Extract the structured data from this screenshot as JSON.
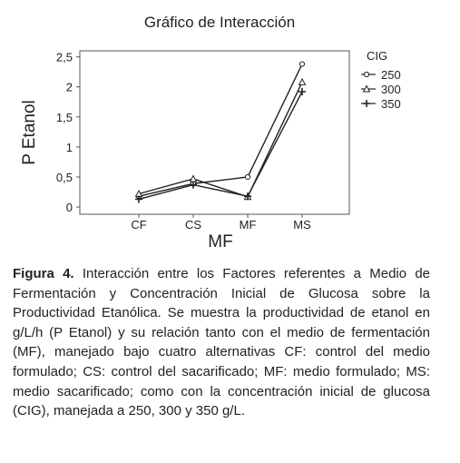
{
  "chart_data": {
    "type": "line",
    "title": "Gráfico de Interacción",
    "x_label": "MF",
    "y_label": "P Etanol",
    "categories": [
      "CF",
      "CS",
      "MF",
      "MS"
    ],
    "legend_title": "CIG",
    "legend_position": "upper right",
    "ylim": [
      -0.12,
      2.6
    ],
    "yticks": [
      0,
      {
        "value": 0.5,
        "label": "0,5"
      },
      1,
      {
        "value": 1.5,
        "label": "1,5"
      },
      2,
      {
        "value": 2.5,
        "label": "2,5"
      }
    ],
    "series": [
      {
        "name": "250",
        "color": "#222222",
        "marker": "circle",
        "values": [
          0.18,
          0.39,
          0.5,
          2.38
        ]
      },
      {
        "name": "300",
        "color": "#222222",
        "marker": "triangle",
        "values": [
          0.22,
          0.47,
          0.17,
          2.08
        ]
      },
      {
        "name": "350",
        "color": "#222222",
        "marker": "plus",
        "values": [
          0.13,
          0.37,
          0.18,
          1.92
        ]
      }
    ]
  },
  "caption": {
    "label": "Figura 4.",
    "text": "Interacción entre los Factores referentes a Medio de Fermentación y Concentración Inicial de Glucosa sobre la Productividad Etanólica. Se muestra la productividad de etanol en g/L/h  (P Etanol) y su relación tanto con el medio de fermentación (MF), manejado bajo cuatro alternativas CF: control del medio formulado; CS: control del sacarificado;  MF: medio formulado;  MS: medio sacarificado; como con la concentración inicial de glucosa (CIG), manejada a 250, 300 y 350 g/L."
  }
}
